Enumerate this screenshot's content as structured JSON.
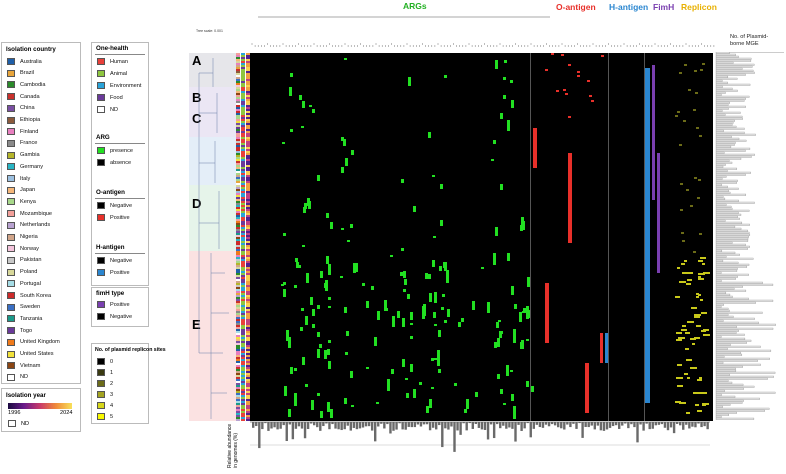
{
  "legend": {
    "country_title": "Isolation country",
    "countries": [
      {
        "name": "Australia",
        "color": "#1f5fa8"
      },
      {
        "name": "Brazil",
        "color": "#e8a53b"
      },
      {
        "name": "Cambodia",
        "color": "#2a8a2a"
      },
      {
        "name": "Canada",
        "color": "#c9302c"
      },
      {
        "name": "China",
        "color": "#7a4fa3"
      },
      {
        "name": "Ethiopia",
        "color": "#8b5a3c"
      },
      {
        "name": "Finland",
        "color": "#e87fbf"
      },
      {
        "name": "France",
        "color": "#8a8a8a"
      },
      {
        "name": "Gambia",
        "color": "#b5b52a"
      },
      {
        "name": "Germany",
        "color": "#29b5c4"
      },
      {
        "name": "Italy",
        "color": "#9cc0e0"
      },
      {
        "name": "Japan",
        "color": "#f5b77a"
      },
      {
        "name": "Kenya",
        "color": "#a8d88a"
      },
      {
        "name": "Mozambique",
        "color": "#f3a09a"
      },
      {
        "name": "Netherlands",
        "color": "#b8a2d0"
      },
      {
        "name": "Nigeria",
        "color": "#d1a58a"
      },
      {
        "name": "Norway",
        "color": "#f4c4dc"
      },
      {
        "name": "Pakistan",
        "color": "#c8c8c8"
      },
      {
        "name": "Poland",
        "color": "#d8d89a"
      },
      {
        "name": "Portugal",
        "color": "#a6dde6"
      },
      {
        "name": "South Korea",
        "color": "#cc2a2a"
      },
      {
        "name": "Sweden",
        "color": "#3a6fc4"
      },
      {
        "name": "Tanzania",
        "color": "#1a9a8a"
      },
      {
        "name": "Togo",
        "color": "#6a3a9a"
      },
      {
        "name": "United Kingdom",
        "color": "#f07a1a"
      },
      {
        "name": "United States",
        "color": "#f2e23a"
      },
      {
        "name": "Vietnam",
        "color": "#8b4513"
      },
      {
        "name": "ND",
        "color": "#ffffff"
      }
    ],
    "year_title": "Isolation year",
    "year_min": "1996",
    "year_max": "2024",
    "year_nd": "ND",
    "onehealth_title": "One-health",
    "onehealth": [
      {
        "name": "Human",
        "color": "#e8403a"
      },
      {
        "name": "Animal",
        "color": "#8ec63f"
      },
      {
        "name": "Environment",
        "color": "#29a3d9"
      },
      {
        "name": "Food",
        "color": "#6a3a9a"
      },
      {
        "name": "ND",
        "color": "#ffffff"
      }
    ],
    "arg_title": "ARG",
    "arg": [
      {
        "name": "presence",
        "color": "#22e022"
      },
      {
        "name": "absence",
        "color": "#000000"
      }
    ],
    "oantigen_title": "O-antigen",
    "oantigen": [
      {
        "name": "Negative",
        "color": "#000000"
      },
      {
        "name": "Positive",
        "color": "#e8302a"
      }
    ],
    "hantigen_title": "H-antigen",
    "hantigen": [
      {
        "name": "Negative",
        "color": "#000000"
      },
      {
        "name": "Positive",
        "color": "#2a86d0"
      }
    ],
    "fimh_title": "fimH type",
    "fimh": [
      {
        "name": "Positive",
        "color": "#7a3fb0"
      },
      {
        "name": "Negative",
        "color": "#000000"
      }
    ],
    "replicon_title": "No. of plasmid replicon sites",
    "replicon": [
      {
        "name": "0",
        "color": "#000000"
      },
      {
        "name": "1",
        "color": "#3a3a10"
      },
      {
        "name": "2",
        "color": "#6b6b18"
      },
      {
        "name": "3",
        "color": "#a3a320"
      },
      {
        "name": "4",
        "color": "#d6d61a"
      },
      {
        "name": "5",
        "color": "#f8f800"
      }
    ]
  },
  "headers": {
    "args": "ARGs",
    "oantigen": "O-antigen",
    "hantigen": "H-antigen",
    "fimh": "FimH",
    "replicon": "Replicon",
    "mge": "No. of Plasmid-\nborne MGE",
    "tree_scale": "Tree scale: 0.001",
    "abundance": "Relative abundance in genomes (%)"
  },
  "clusters": [
    "A",
    "B",
    "C",
    "D",
    "E"
  ],
  "colors": {
    "arg": "#22e022",
    "oant": "#e8302a",
    "hant": "#2a86d0",
    "fimh": "#7a3fb0",
    "rep": "#c8c81a"
  }
}
